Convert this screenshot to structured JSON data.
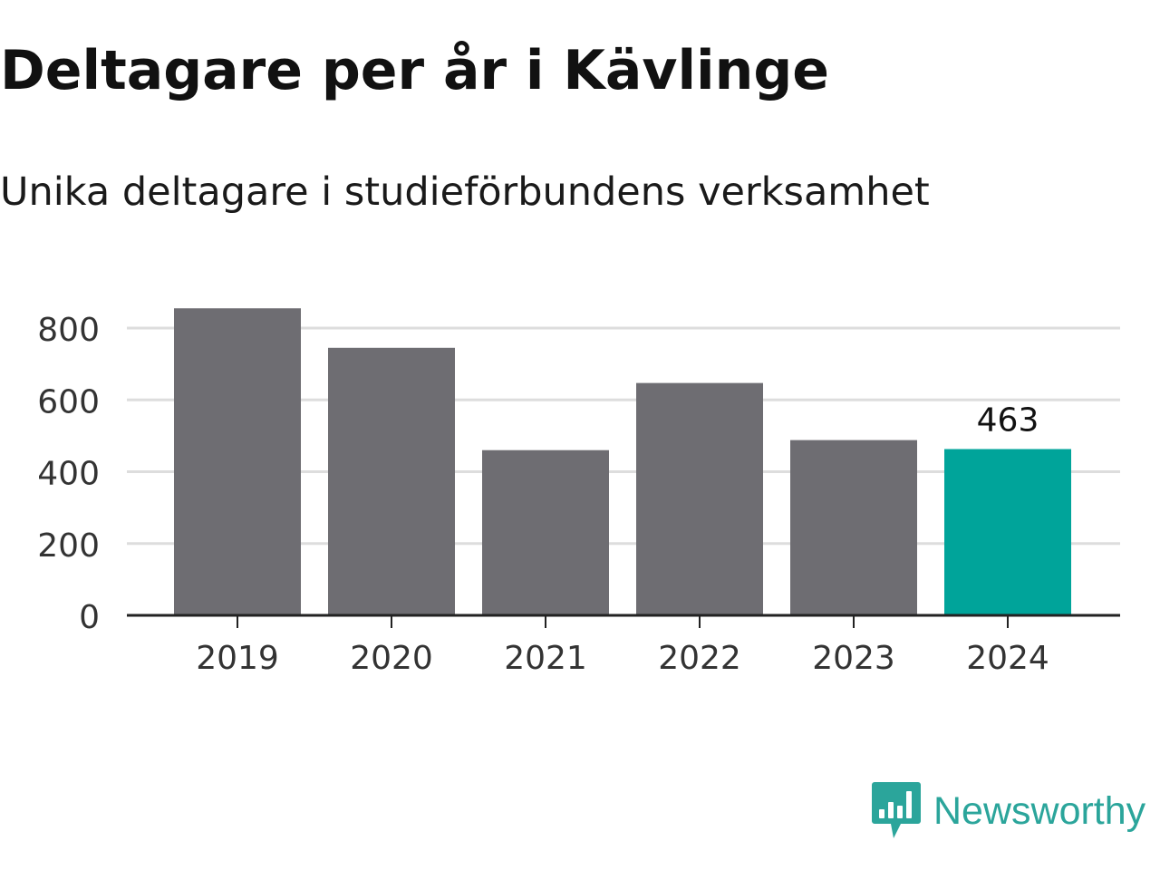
{
  "header": {
    "title": "Deltagare per år i Kävlinge",
    "subtitle": "Unika deltagare i studieförbundens verksamhet"
  },
  "chart_data": {
    "type": "bar",
    "title": "Deltagare per år i Kävlinge",
    "subtitle": "Unika deltagare i studieförbundens verksamhet",
    "categories": [
      "2019",
      "2020",
      "2021",
      "2022",
      "2023",
      "2024"
    ],
    "values": [
      855,
      745,
      460,
      647,
      488,
      463
    ],
    "ylim": [
      0,
      880
    ],
    "yticks": [
      0,
      200,
      400,
      600,
      800
    ],
    "grid": true,
    "highlight_index": 5,
    "data_labels": [
      {
        "index": 5,
        "text": "463"
      }
    ],
    "colors": {
      "bar": "#6e6d72",
      "highlight": "#00a49a",
      "grid": "#dddddd",
      "axis": "#222222",
      "tick_text": "#333333",
      "label_text": "#111111"
    }
  },
  "brand": {
    "name": "Newsworthy",
    "icon": "newsworthy-logo-icon",
    "color": "#2ba59b"
  }
}
